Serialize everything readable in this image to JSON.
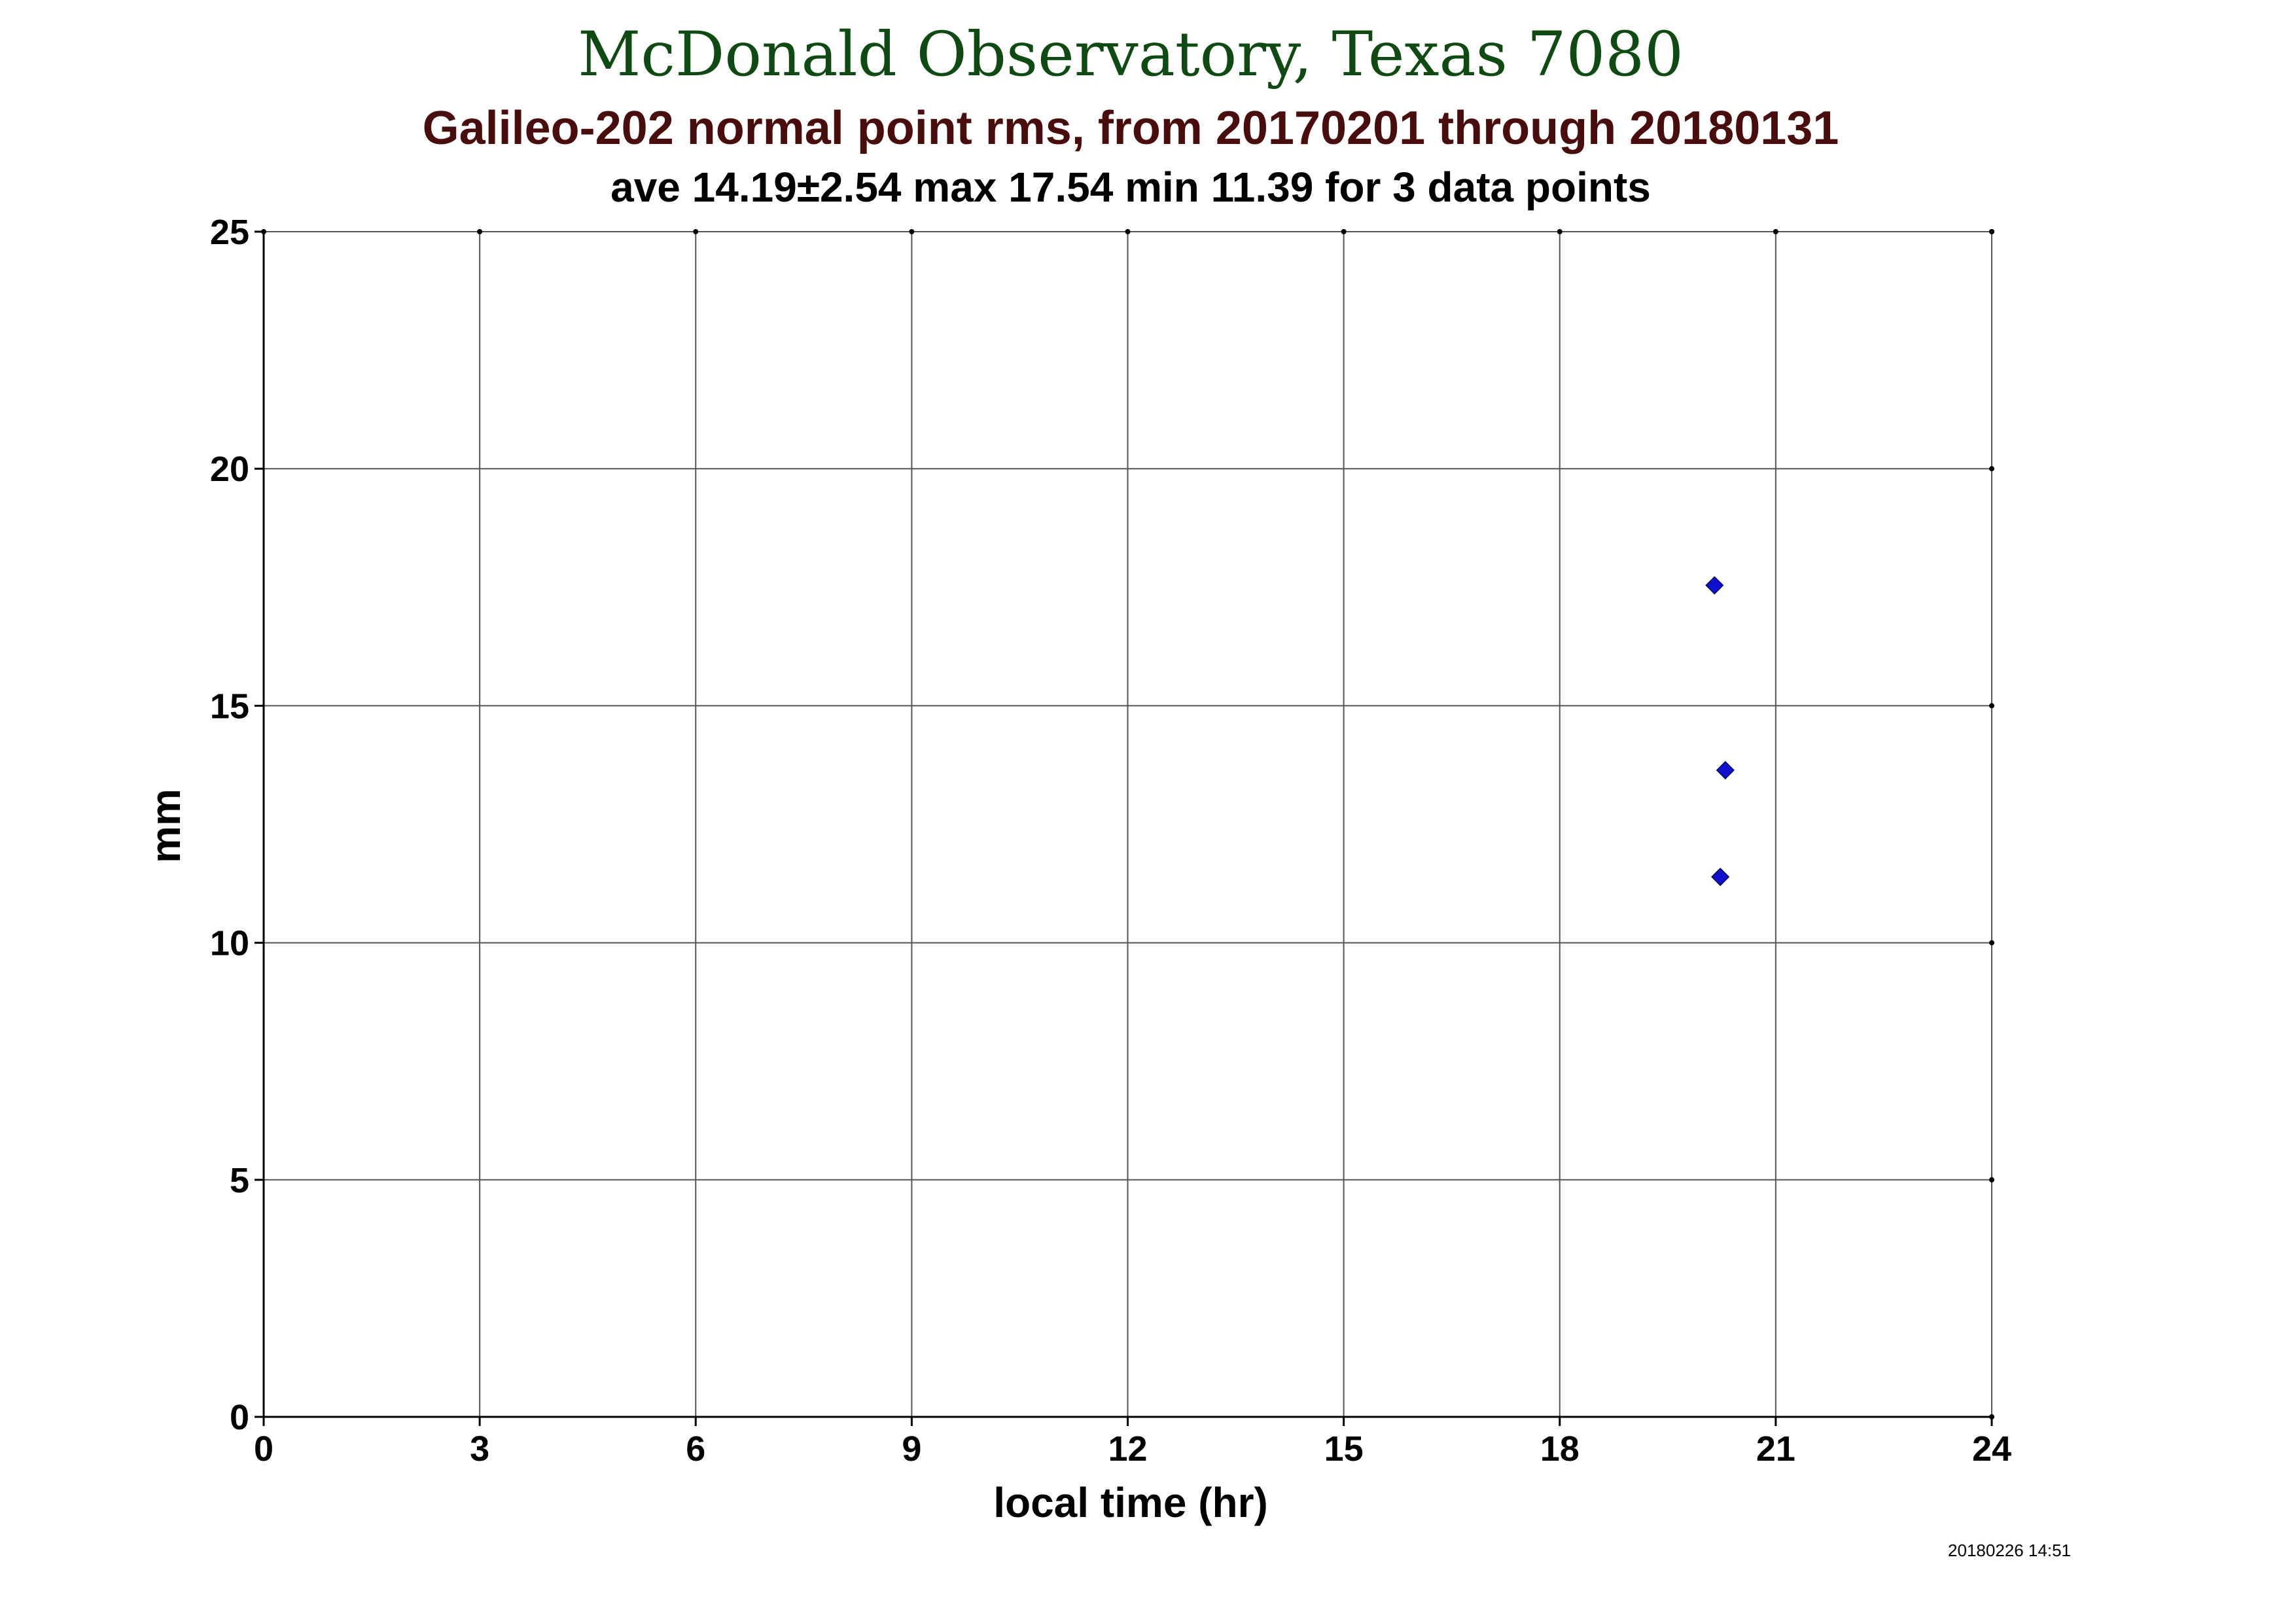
{
  "colors": {
    "title": "#0f4a12",
    "subtitle": "#4a0d0d",
    "text": "#000000",
    "grid": "#555555",
    "marker": "#1010cc"
  },
  "chart_data": {
    "type": "scatter",
    "title": "McDonald Observatory, Texas 7080",
    "subtitle": "Galileo-202 normal point rms, from 20170201 through 20180131",
    "stats_line": "ave 14.19±2.54 max 17.54 min 11.39 for 3 data points",
    "xlabel": "local time (hr)",
    "ylabel": "mm",
    "xlim": [
      0,
      24
    ],
    "ylim": [
      0,
      25
    ],
    "xticks": [
      0,
      3,
      6,
      9,
      12,
      15,
      18,
      21,
      24
    ],
    "yticks": [
      0,
      5,
      10,
      15,
      20,
      25
    ],
    "grid": true,
    "marker": "diamond",
    "series": [
      {
        "points": [
          {
            "x": 20.15,
            "y": 17.54
          },
          {
            "x": 20.3,
            "y": 13.64
          },
          {
            "x": 20.23,
            "y": 11.39
          }
        ]
      }
    ],
    "timestamp": "20180226 14:51"
  }
}
